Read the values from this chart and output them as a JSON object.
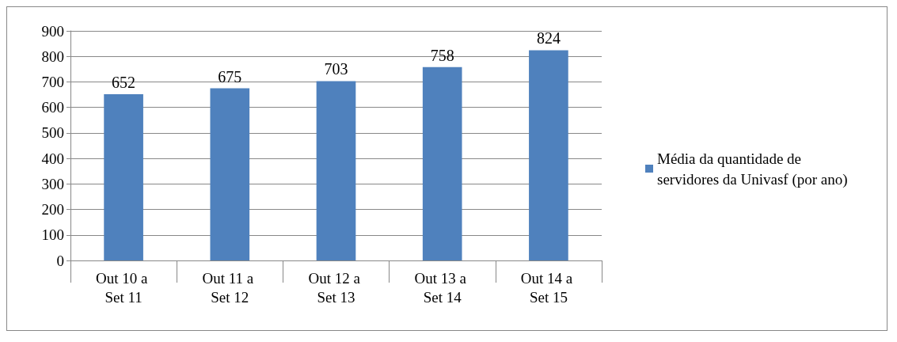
{
  "chart_data": {
    "type": "bar",
    "categories": [
      "Out 10 a Set 11",
      "Out 11 a Set 12",
      "Out 12 a Set 13",
      "Out 13 a Set 14",
      "Out 14 a Set 15"
    ],
    "series": [
      {
        "name": "Média da quantidade de servidores da Univasf (por ano)",
        "color": "#4f81bd",
        "values": [
          652,
          675,
          703,
          758,
          824
        ]
      }
    ],
    "ylim": [
      0,
      900
    ],
    "yticks": [
      0,
      100,
      200,
      300,
      400,
      500,
      600,
      700,
      800,
      900
    ],
    "grid": "y",
    "legend": "right",
    "data_labels": true
  }
}
